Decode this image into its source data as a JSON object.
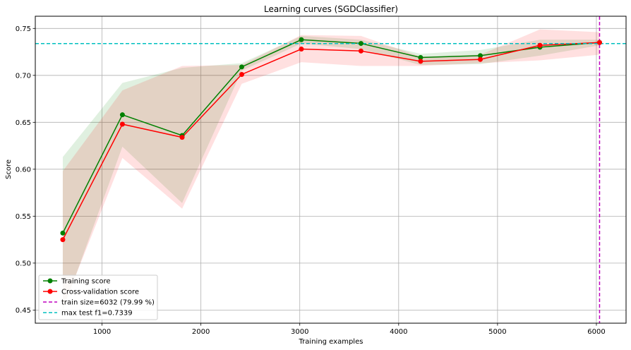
{
  "chart_data": {
    "type": "line",
    "title": "Learning curves (SGDClassifier)",
    "xlabel": "Training examples",
    "ylabel": "Score",
    "xlim": [
      325,
      6300
    ],
    "ylim": [
      0.436,
      0.763
    ],
    "grid": true,
    "legend_position": "lower-left",
    "x": [
      603,
      1206,
      1810,
      2413,
      3016,
      3619,
      4222,
      4826,
      5429,
      6032
    ],
    "series": [
      {
        "name": "Training score",
        "color": "#008000",
        "marker": "circle",
        "values": [
          0.532,
          0.658,
          0.636,
          0.709,
          0.738,
          0.734,
          0.719,
          0.721,
          0.73,
          0.735
        ],
        "band_upper": [
          0.613,
          0.692,
          0.708,
          0.713,
          0.742,
          0.738,
          0.723,
          0.727,
          0.738,
          0.738
        ],
        "band_lower": [
          0.449,
          0.624,
          0.564,
          0.705,
          0.734,
          0.728,
          0.711,
          0.712,
          0.721,
          0.732
        ]
      },
      {
        "name": "Cross-validation score",
        "color": "#ff0000",
        "marker": "circle",
        "values": [
          0.525,
          0.648,
          0.634,
          0.701,
          0.728,
          0.726,
          0.715,
          0.717,
          0.732,
          0.735
        ],
        "band_upper": [
          0.598,
          0.684,
          0.71,
          0.711,
          0.743,
          0.742,
          0.72,
          0.722,
          0.749,
          0.746
        ],
        "band_lower": [
          0.452,
          0.612,
          0.558,
          0.691,
          0.714,
          0.71,
          0.71,
          0.713,
          0.716,
          0.722
        ]
      }
    ],
    "reference_lines": [
      {
        "orientation": "vertical",
        "value": 6032,
        "label": "train size=6032 (79.99 %)",
        "color": "#bf00bf",
        "style": "dashed"
      },
      {
        "orientation": "horizontal",
        "value": 0.7339,
        "label": "max test f1=0.7339",
        "color": "#00bfbf",
        "style": "dashed"
      }
    ],
    "x_ticks": [
      1000,
      2000,
      3000,
      4000,
      5000,
      6000
    ],
    "x_tick_labels": [
      "1000",
      "2000",
      "3000",
      "4000",
      "5000",
      "6000"
    ],
    "y_ticks": [
      0.45,
      0.5,
      0.55,
      0.6,
      0.65,
      0.7,
      0.75
    ],
    "y_tick_labels": [
      "0.45",
      "0.50",
      "0.55",
      "0.60",
      "0.65",
      "0.70",
      "0.75"
    ]
  }
}
